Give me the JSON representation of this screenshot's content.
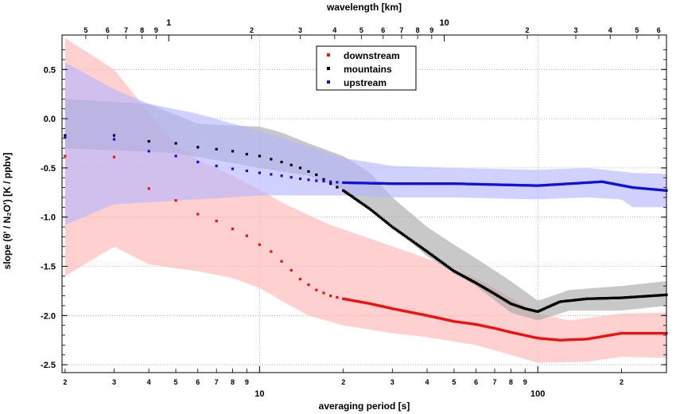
{
  "chart_data": {
    "type": "scatter",
    "xlabel": "averaging period [s]",
    "x2label": "wavelength [km]",
    "ylabel": "slope (θ' / N₂O') [K / ppbv]",
    "xscale": "log",
    "xlim": [
      1.95,
      290
    ],
    "x2lim": [
      0.41,
      64
    ],
    "ylim": [
      -2.58,
      0.85
    ],
    "grid": true,
    "legend_position": "top-center",
    "x_major_ticks": [
      {
        "v": 10,
        "label": "10"
      },
      {
        "v": 100,
        "label": "100"
      }
    ],
    "x_minor_ticks": [
      {
        "v": 2,
        "label": "2"
      },
      {
        "v": 3,
        "label": "3"
      },
      {
        "v": 4,
        "label": "4"
      },
      {
        "v": 5,
        "label": "5"
      },
      {
        "v": 6,
        "label": "6"
      },
      {
        "v": 7,
        "label": "7"
      },
      {
        "v": 8,
        "label": "8"
      },
      {
        "v": 9,
        "label": "9"
      },
      {
        "v": 20,
        "label": "2"
      },
      {
        "v": 30,
        "label": "3"
      },
      {
        "v": 40,
        "label": "4"
      },
      {
        "v": 50,
        "label": "5"
      },
      {
        "v": 60,
        "label": "6"
      },
      {
        "v": 70,
        "label": "7"
      },
      {
        "v": 80,
        "label": "8"
      },
      {
        "v": 90,
        "label": "9"
      },
      {
        "v": 200,
        "label": "2"
      }
    ],
    "x2_major_ticks": [
      {
        "v": 1,
        "label": "1"
      },
      {
        "v": 10,
        "label": "10"
      }
    ],
    "x2_minor_ticks": [
      {
        "v": 0.5,
        "label": "5"
      },
      {
        "v": 0.6,
        "label": "6"
      },
      {
        "v": 0.7,
        "label": "7"
      },
      {
        "v": 0.8,
        "label": "8"
      },
      {
        "v": 0.9,
        "label": "9"
      },
      {
        "v": 2,
        "label": "2"
      },
      {
        "v": 3,
        "label": "3"
      },
      {
        "v": 4,
        "label": "4"
      },
      {
        "v": 5,
        "label": "5"
      },
      {
        "v": 6,
        "label": "6"
      },
      {
        "v": 7,
        "label": "7"
      },
      {
        "v": 8,
        "label": "8"
      },
      {
        "v": 9,
        "label": "9"
      },
      {
        "v": 20,
        "label": "2"
      },
      {
        "v": 30,
        "label": "3"
      },
      {
        "v": 40,
        "label": "4"
      },
      {
        "v": 50,
        "label": "5"
      },
      {
        "v": 60,
        "label": "6"
      }
    ],
    "y_ticks": [
      0.5,
      0.0,
      -0.5,
      -1.0,
      -1.5,
      -2.0,
      -2.5
    ],
    "y_tick_labels": [
      "0.5",
      "0.0",
      "-0.5",
      "-1.0",
      "-1.5",
      "-2.0",
      "-2.5"
    ],
    "series": [
      {
        "name": "downstream",
        "color": "#ee1111",
        "band_color": "#ffb3b3",
        "anchors": [
          [
            2,
            -0.38
          ],
          [
            3,
            -0.39
          ],
          [
            4,
            -0.71
          ],
          [
            5,
            -0.83
          ],
          [
            6,
            -0.97
          ],
          [
            7,
            -1.04
          ],
          [
            8,
            -1.12
          ],
          [
            9,
            -1.19
          ],
          [
            10,
            -1.28
          ],
          [
            11,
            -1.35
          ],
          [
            12,
            -1.45
          ],
          [
            13,
            -1.54
          ],
          [
            14,
            -1.63
          ],
          [
            16,
            -1.74
          ],
          [
            18,
            -1.8
          ],
          [
            20,
            -1.83
          ],
          [
            25,
            -1.88
          ],
          [
            30,
            -1.93
          ],
          [
            40,
            -2.0
          ],
          [
            50,
            -2.06
          ],
          [
            60,
            -2.09
          ],
          [
            70,
            -2.13
          ],
          [
            80,
            -2.17
          ],
          [
            100,
            -2.23
          ],
          [
            120,
            -2.25
          ],
          [
            150,
            -2.24
          ],
          [
            200,
            -2.18
          ],
          [
            290,
            -2.18
          ]
        ],
        "band_upper": [
          [
            2,
            0.82
          ],
          [
            3,
            0.5
          ],
          [
            4,
            0.06
          ],
          [
            5,
            -0.25
          ],
          [
            6,
            -0.42
          ],
          [
            7,
            -0.5
          ],
          [
            8,
            -0.58
          ],
          [
            10,
            -0.72
          ],
          [
            12,
            -0.85
          ],
          [
            15,
            -0.98
          ],
          [
            18,
            -1.08
          ],
          [
            25,
            -1.22
          ],
          [
            40,
            -1.42
          ],
          [
            60,
            -1.62
          ],
          [
            80,
            -1.82
          ],
          [
            100,
            -1.98
          ],
          [
            130,
            -2.05
          ],
          [
            200,
            -1.98
          ],
          [
            290,
            -1.97
          ]
        ],
        "band_lower": [
          [
            2,
            -1.6
          ],
          [
            3,
            -1.3
          ],
          [
            4,
            -1.48
          ],
          [
            5,
            -1.52
          ],
          [
            6,
            -1.55
          ],
          [
            8,
            -1.62
          ],
          [
            10,
            -1.72
          ],
          [
            12,
            -1.85
          ],
          [
            15,
            -2.0
          ],
          [
            20,
            -2.1
          ],
          [
            30,
            -2.18
          ],
          [
            40,
            -2.22
          ],
          [
            60,
            -2.3
          ],
          [
            80,
            -2.4
          ],
          [
            100,
            -2.48
          ],
          [
            150,
            -2.47
          ],
          [
            200,
            -2.42
          ],
          [
            290,
            -2.43
          ]
        ]
      },
      {
        "name": "mountains",
        "color": "#000000",
        "band_color": "#a6a6a6",
        "anchors": [
          [
            2,
            -0.17
          ],
          [
            3,
            -0.17
          ],
          [
            4,
            -0.23
          ],
          [
            5,
            -0.25
          ],
          [
            6,
            -0.29
          ],
          [
            7,
            -0.31
          ],
          [
            8,
            -0.33
          ],
          [
            9,
            -0.36
          ],
          [
            10,
            -0.38
          ],
          [
            12,
            -0.44
          ],
          [
            14,
            -0.5
          ],
          [
            16,
            -0.57
          ],
          [
            18,
            -0.66
          ],
          [
            20,
            -0.73
          ],
          [
            25,
            -0.92
          ],
          [
            30,
            -1.1
          ],
          [
            40,
            -1.35
          ],
          [
            50,
            -1.55
          ],
          [
            60,
            -1.67
          ],
          [
            70,
            -1.78
          ],
          [
            80,
            -1.88
          ],
          [
            90,
            -1.93
          ],
          [
            100,
            -1.96
          ],
          [
            120,
            -1.86
          ],
          [
            150,
            -1.83
          ],
          [
            200,
            -1.82
          ],
          [
            290,
            -1.79
          ]
        ],
        "band_upper": [
          [
            2,
            0.2
          ],
          [
            4,
            0.15
          ],
          [
            6,
            -0.05
          ],
          [
            8,
            -0.07
          ],
          [
            10,
            -0.08
          ],
          [
            12,
            -0.14
          ],
          [
            15,
            -0.25
          ],
          [
            20,
            -0.38
          ],
          [
            25,
            -0.55
          ],
          [
            30,
            -0.8
          ],
          [
            40,
            -1.1
          ],
          [
            50,
            -1.28
          ],
          [
            60,
            -1.42
          ],
          [
            80,
            -1.65
          ],
          [
            100,
            -1.85
          ],
          [
            130,
            -1.74
          ],
          [
            200,
            -1.7
          ],
          [
            290,
            -1.65
          ]
        ],
        "band_lower": [
          [
            2,
            -0.3
          ],
          [
            5,
            -0.35
          ],
          [
            10,
            -0.5
          ],
          [
            15,
            -0.58
          ],
          [
            20,
            -0.72
          ],
          [
            25,
            -0.9
          ],
          [
            30,
            -1.08
          ],
          [
            40,
            -1.4
          ],
          [
            60,
            -1.7
          ],
          [
            80,
            -1.97
          ],
          [
            100,
            -2.05
          ],
          [
            130,
            -1.95
          ],
          [
            200,
            -1.95
          ],
          [
            290,
            -1.9
          ]
        ]
      },
      {
        "name": "upstream",
        "color": "#1111dd",
        "band_color": "#b5b5ff",
        "anchors": [
          [
            2,
            -0.19
          ],
          [
            3,
            -0.21
          ],
          [
            4,
            -0.33
          ],
          [
            5,
            -0.38
          ],
          [
            6,
            -0.44
          ],
          [
            7,
            -0.48
          ],
          [
            8,
            -0.51
          ],
          [
            9,
            -0.53
          ],
          [
            10,
            -0.55
          ],
          [
            12,
            -0.58
          ],
          [
            14,
            -0.61
          ],
          [
            16,
            -0.63
          ],
          [
            20,
            -0.65
          ],
          [
            30,
            -0.66
          ],
          [
            50,
            -0.66
          ],
          [
            70,
            -0.67
          ],
          [
            100,
            -0.68
          ],
          [
            150,
            -0.65
          ],
          [
            170,
            -0.64
          ],
          [
            220,
            -0.7
          ],
          [
            290,
            -0.73
          ]
        ],
        "band_upper": [
          [
            2,
            0.57
          ],
          [
            3,
            0.3
          ],
          [
            4,
            0.15
          ],
          [
            6,
            0.05
          ],
          [
            8,
            -0.05
          ],
          [
            10,
            -0.12
          ],
          [
            15,
            -0.28
          ],
          [
            20,
            -0.4
          ],
          [
            30,
            -0.48
          ],
          [
            50,
            -0.5
          ],
          [
            100,
            -0.52
          ],
          [
            150,
            -0.5
          ],
          [
            220,
            -0.55
          ],
          [
            290,
            -0.56
          ]
        ],
        "band_lower": [
          [
            2,
            -1.08
          ],
          [
            3,
            -0.87
          ],
          [
            6,
            -0.82
          ],
          [
            10,
            -0.78
          ],
          [
            20,
            -0.78
          ],
          [
            30,
            -0.8
          ],
          [
            50,
            -0.8
          ],
          [
            100,
            -0.82
          ],
          [
            150,
            -0.8
          ],
          [
            200,
            -0.82
          ],
          [
            220,
            -0.9
          ],
          [
            290,
            -0.9
          ]
        ]
      }
    ]
  }
}
